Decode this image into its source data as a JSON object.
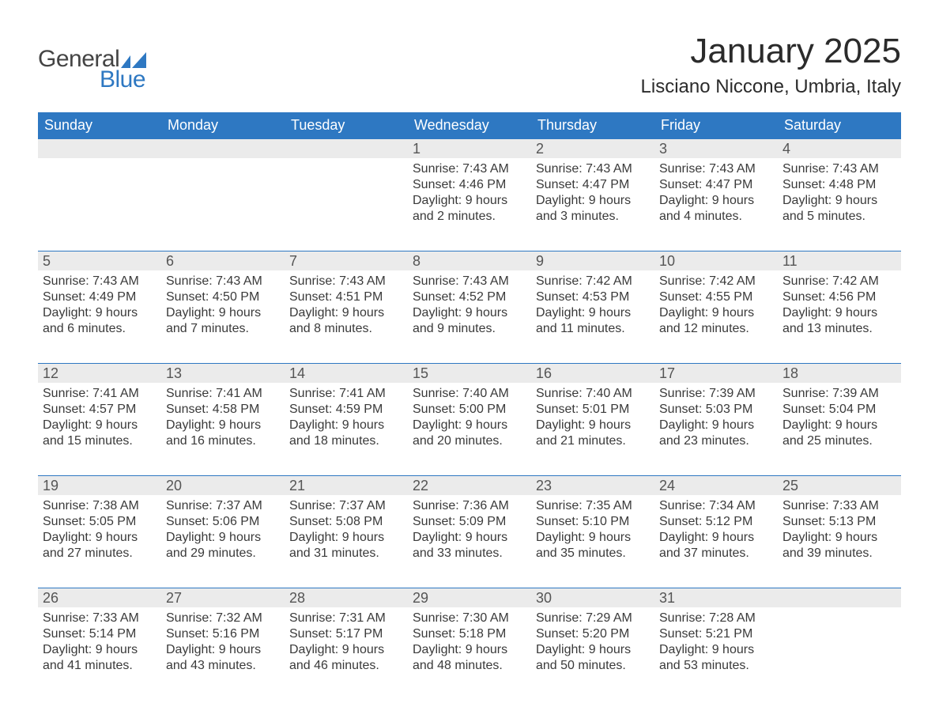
{
  "logo": {
    "text_general": "General",
    "text_blue": "Blue",
    "flag_color": "#2e78c2"
  },
  "title": "January 2025",
  "location": "Lisciano Niccone, Umbria, Italy",
  "colors": {
    "header_bg": "#2e78c2",
    "header_text": "#ffffff",
    "daynum_bg": "#ebebeb",
    "rule": "#2e78c2",
    "body_text": "#3a3a3a"
  },
  "day_of_week": [
    "Sunday",
    "Monday",
    "Tuesday",
    "Wednesday",
    "Thursday",
    "Friday",
    "Saturday"
  ],
  "weeks": [
    [
      null,
      null,
      null,
      {
        "n": "1",
        "sunrise": "Sunrise: 7:43 AM",
        "sunset": "Sunset: 4:46 PM",
        "d1": "Daylight: 9 hours",
        "d2": "and 2 minutes."
      },
      {
        "n": "2",
        "sunrise": "Sunrise: 7:43 AM",
        "sunset": "Sunset: 4:47 PM",
        "d1": "Daylight: 9 hours",
        "d2": "and 3 minutes."
      },
      {
        "n": "3",
        "sunrise": "Sunrise: 7:43 AM",
        "sunset": "Sunset: 4:47 PM",
        "d1": "Daylight: 9 hours",
        "d2": "and 4 minutes."
      },
      {
        "n": "4",
        "sunrise": "Sunrise: 7:43 AM",
        "sunset": "Sunset: 4:48 PM",
        "d1": "Daylight: 9 hours",
        "d2": "and 5 minutes."
      }
    ],
    [
      {
        "n": "5",
        "sunrise": "Sunrise: 7:43 AM",
        "sunset": "Sunset: 4:49 PM",
        "d1": "Daylight: 9 hours",
        "d2": "and 6 minutes."
      },
      {
        "n": "6",
        "sunrise": "Sunrise: 7:43 AM",
        "sunset": "Sunset: 4:50 PM",
        "d1": "Daylight: 9 hours",
        "d2": "and 7 minutes."
      },
      {
        "n": "7",
        "sunrise": "Sunrise: 7:43 AM",
        "sunset": "Sunset: 4:51 PM",
        "d1": "Daylight: 9 hours",
        "d2": "and 8 minutes."
      },
      {
        "n": "8",
        "sunrise": "Sunrise: 7:43 AM",
        "sunset": "Sunset: 4:52 PM",
        "d1": "Daylight: 9 hours",
        "d2": "and 9 minutes."
      },
      {
        "n": "9",
        "sunrise": "Sunrise: 7:42 AM",
        "sunset": "Sunset: 4:53 PM",
        "d1": "Daylight: 9 hours",
        "d2": "and 11 minutes."
      },
      {
        "n": "10",
        "sunrise": "Sunrise: 7:42 AM",
        "sunset": "Sunset: 4:55 PM",
        "d1": "Daylight: 9 hours",
        "d2": "and 12 minutes."
      },
      {
        "n": "11",
        "sunrise": "Sunrise: 7:42 AM",
        "sunset": "Sunset: 4:56 PM",
        "d1": "Daylight: 9 hours",
        "d2": "and 13 minutes."
      }
    ],
    [
      {
        "n": "12",
        "sunrise": "Sunrise: 7:41 AM",
        "sunset": "Sunset: 4:57 PM",
        "d1": "Daylight: 9 hours",
        "d2": "and 15 minutes."
      },
      {
        "n": "13",
        "sunrise": "Sunrise: 7:41 AM",
        "sunset": "Sunset: 4:58 PM",
        "d1": "Daylight: 9 hours",
        "d2": "and 16 minutes."
      },
      {
        "n": "14",
        "sunrise": "Sunrise: 7:41 AM",
        "sunset": "Sunset: 4:59 PM",
        "d1": "Daylight: 9 hours",
        "d2": "and 18 minutes."
      },
      {
        "n": "15",
        "sunrise": "Sunrise: 7:40 AM",
        "sunset": "Sunset: 5:00 PM",
        "d1": "Daylight: 9 hours",
        "d2": "and 20 minutes."
      },
      {
        "n": "16",
        "sunrise": "Sunrise: 7:40 AM",
        "sunset": "Sunset: 5:01 PM",
        "d1": "Daylight: 9 hours",
        "d2": "and 21 minutes."
      },
      {
        "n": "17",
        "sunrise": "Sunrise: 7:39 AM",
        "sunset": "Sunset: 5:03 PM",
        "d1": "Daylight: 9 hours",
        "d2": "and 23 minutes."
      },
      {
        "n": "18",
        "sunrise": "Sunrise: 7:39 AM",
        "sunset": "Sunset: 5:04 PM",
        "d1": "Daylight: 9 hours",
        "d2": "and 25 minutes."
      }
    ],
    [
      {
        "n": "19",
        "sunrise": "Sunrise: 7:38 AM",
        "sunset": "Sunset: 5:05 PM",
        "d1": "Daylight: 9 hours",
        "d2": "and 27 minutes."
      },
      {
        "n": "20",
        "sunrise": "Sunrise: 7:37 AM",
        "sunset": "Sunset: 5:06 PM",
        "d1": "Daylight: 9 hours",
        "d2": "and 29 minutes."
      },
      {
        "n": "21",
        "sunrise": "Sunrise: 7:37 AM",
        "sunset": "Sunset: 5:08 PM",
        "d1": "Daylight: 9 hours",
        "d2": "and 31 minutes."
      },
      {
        "n": "22",
        "sunrise": "Sunrise: 7:36 AM",
        "sunset": "Sunset: 5:09 PM",
        "d1": "Daylight: 9 hours",
        "d2": "and 33 minutes."
      },
      {
        "n": "23",
        "sunrise": "Sunrise: 7:35 AM",
        "sunset": "Sunset: 5:10 PM",
        "d1": "Daylight: 9 hours",
        "d2": "and 35 minutes."
      },
      {
        "n": "24",
        "sunrise": "Sunrise: 7:34 AM",
        "sunset": "Sunset: 5:12 PM",
        "d1": "Daylight: 9 hours",
        "d2": "and 37 minutes."
      },
      {
        "n": "25",
        "sunrise": "Sunrise: 7:33 AM",
        "sunset": "Sunset: 5:13 PM",
        "d1": "Daylight: 9 hours",
        "d2": "and 39 minutes."
      }
    ],
    [
      {
        "n": "26",
        "sunrise": "Sunrise: 7:33 AM",
        "sunset": "Sunset: 5:14 PM",
        "d1": "Daylight: 9 hours",
        "d2": "and 41 minutes."
      },
      {
        "n": "27",
        "sunrise": "Sunrise: 7:32 AM",
        "sunset": "Sunset: 5:16 PM",
        "d1": "Daylight: 9 hours",
        "d2": "and 43 minutes."
      },
      {
        "n": "28",
        "sunrise": "Sunrise: 7:31 AM",
        "sunset": "Sunset: 5:17 PM",
        "d1": "Daylight: 9 hours",
        "d2": "and 46 minutes."
      },
      {
        "n": "29",
        "sunrise": "Sunrise: 7:30 AM",
        "sunset": "Sunset: 5:18 PM",
        "d1": "Daylight: 9 hours",
        "d2": "and 48 minutes."
      },
      {
        "n": "30",
        "sunrise": "Sunrise: 7:29 AM",
        "sunset": "Sunset: 5:20 PM",
        "d1": "Daylight: 9 hours",
        "d2": "and 50 minutes."
      },
      {
        "n": "31",
        "sunrise": "Sunrise: 7:28 AM",
        "sunset": "Sunset: 5:21 PM",
        "d1": "Daylight: 9 hours",
        "d2": "and 53 minutes."
      },
      null
    ]
  ]
}
